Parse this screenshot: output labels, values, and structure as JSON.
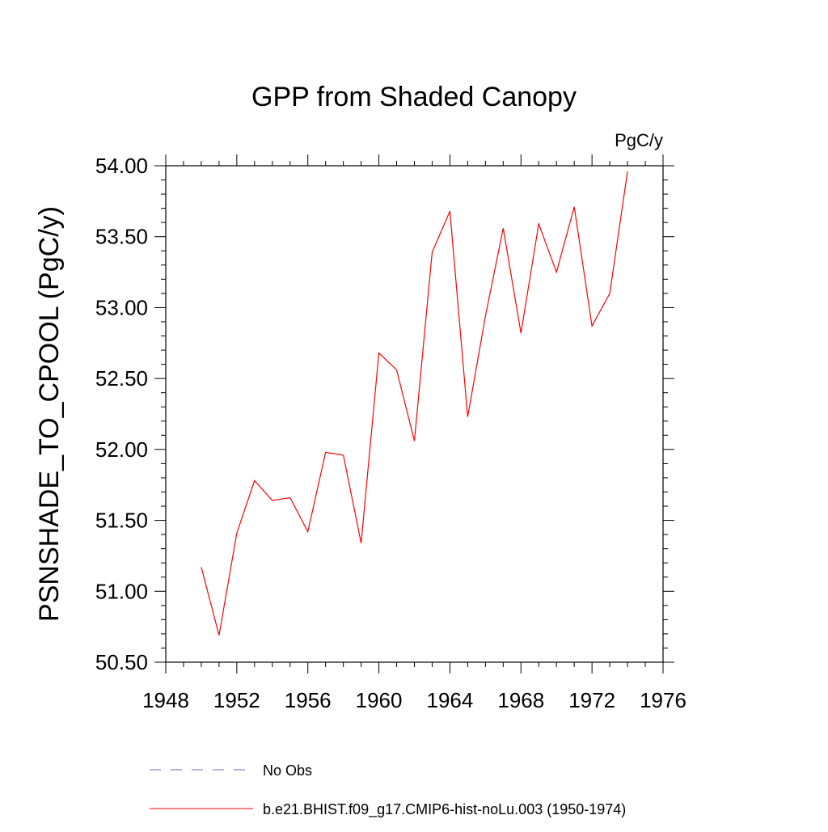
{
  "chart_data": {
    "type": "line",
    "title": "GPP from Shaded Canopy",
    "units_label": "PgC/y",
    "ylabel": "PSNSHADE_TO_CPOOL  (PgC/y)",
    "xlabel": "",
    "xlim": [
      1948,
      1976
    ],
    "ylim": [
      50.5,
      54.0
    ],
    "x_ticks": [
      1948,
      1952,
      1956,
      1960,
      1964,
      1968,
      1972,
      1976
    ],
    "y_ticks": [
      "50.50",
      "51.00",
      "51.50",
      "52.00",
      "52.50",
      "53.00",
      "53.50",
      "54.00"
    ],
    "grid": false,
    "legend_position": "bottom",
    "series": [
      {
        "name": "b.e21.BHIST.f09_g17.CMIP6-hist-noLu.003 (1950-1974)",
        "color": "#ff0000",
        "style": "solid",
        "x": [
          1950,
          1951,
          1952,
          1953,
          1954,
          1955,
          1956,
          1957,
          1958,
          1959,
          1960,
          1961,
          1962,
          1963,
          1964,
          1965,
          1966,
          1967,
          1968,
          1969,
          1970,
          1971,
          1972,
          1973,
          1974
        ],
        "y": [
          51.17,
          50.69,
          51.41,
          51.78,
          51.64,
          51.66,
          51.42,
          51.98,
          51.96,
          51.34,
          52.68,
          52.56,
          52.06,
          53.39,
          53.68,
          52.23,
          52.94,
          53.56,
          52.82,
          53.59,
          53.25,
          53.71,
          52.87,
          53.1,
          53.96
        ]
      }
    ],
    "legend": [
      {
        "label": "No Obs",
        "color": "#6a6ad0",
        "style": "dashed"
      },
      {
        "label": "b.e21.BHIST.f09_g17.CMIP6-hist-noLu.003 (1950-1974)",
        "color": "#ff0000",
        "style": "solid"
      }
    ]
  }
}
